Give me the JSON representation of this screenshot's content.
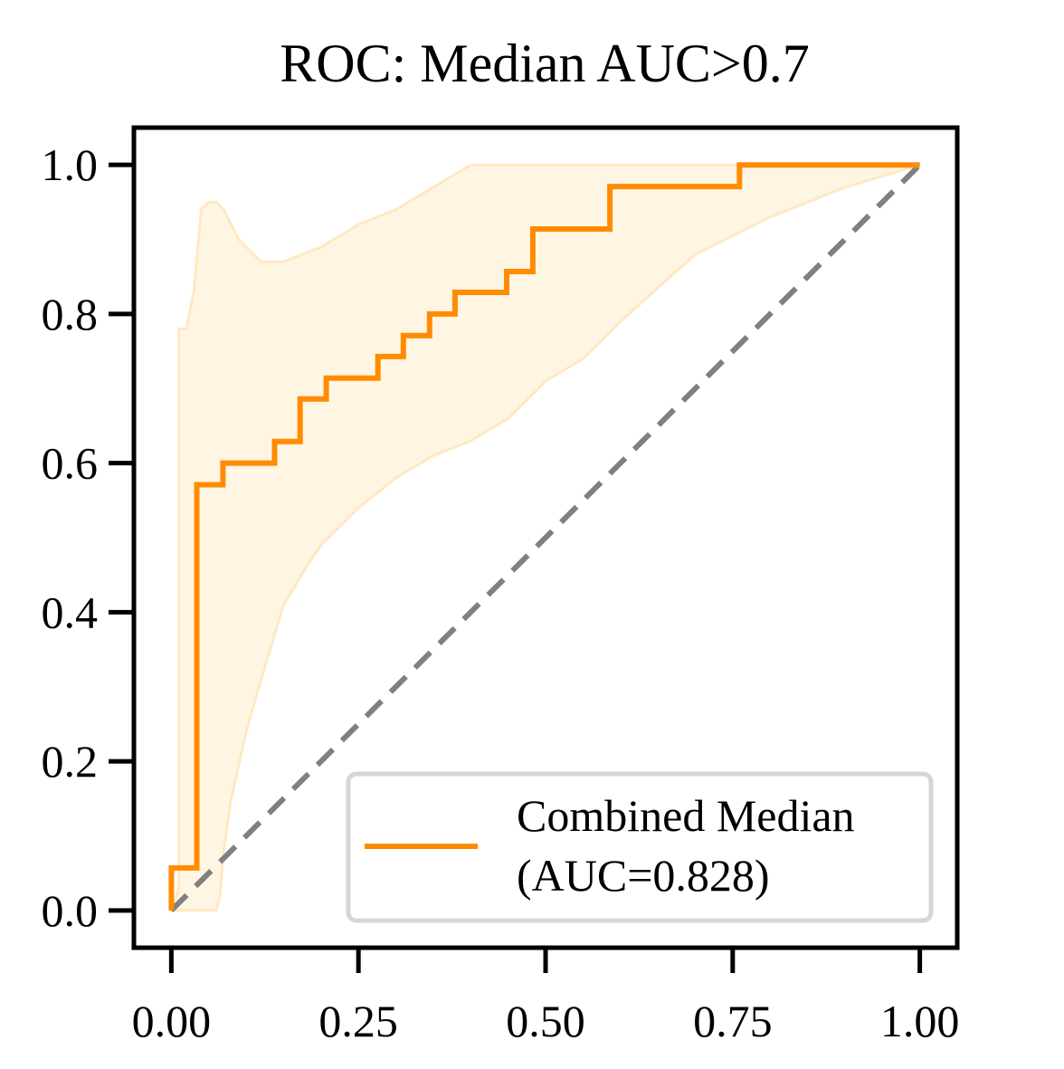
{
  "chart_data": {
    "type": "line",
    "title": "ROC: Median AUC>0.7",
    "xlabel": "",
    "ylabel": "",
    "xlim": [
      -0.05,
      1.05
    ],
    "ylim": [
      -0.05,
      1.05
    ],
    "x_ticks": [
      "0.00",
      "0.25",
      "0.50",
      "0.75",
      "1.00"
    ],
    "x_tick_values": [
      0,
      0.25,
      0.5,
      0.75,
      1.0
    ],
    "y_ticks": [
      "0.0",
      "0.2",
      "0.4",
      "0.6",
      "0.8",
      "1.0"
    ],
    "y_tick_values": [
      0,
      0.2,
      0.4,
      0.6,
      0.8,
      1.0
    ],
    "grid": false,
    "legend_position": "lower right",
    "series": [
      {
        "name": "Combined Median\n(AUC=0.828)",
        "legend_lines": [
          "Combined Median",
          "(AUC=0.828)"
        ],
        "color": "#ff8c00",
        "style": "step",
        "x": [
          0,
          0,
          0.034,
          0.034,
          0.069,
          0.069,
          0.138,
          0.138,
          0.172,
          0.172,
          0.207,
          0.207,
          0.276,
          0.276,
          0.31,
          0.31,
          0.345,
          0.345,
          0.379,
          0.379,
          0.448,
          0.448,
          0.483,
          0.483,
          0.586,
          0.586,
          0.759,
          0.759,
          1.0
        ],
        "y": [
          0,
          0.057,
          0.057,
          0.571,
          0.571,
          0.6,
          0.6,
          0.629,
          0.629,
          0.686,
          0.686,
          0.714,
          0.714,
          0.743,
          0.743,
          0.771,
          0.771,
          0.8,
          0.8,
          0.829,
          0.829,
          0.857,
          0.857,
          0.914,
          0.914,
          0.971,
          0.971,
          1.0,
          1.0
        ]
      }
    ],
    "confidence_band": {
      "color": "#ffe9c2",
      "opacity": 0.45,
      "upper": {
        "x": [
          0,
          0.01,
          0.01,
          0.02,
          0.03,
          0.04,
          0.05,
          0.06,
          0.07,
          0.08,
          0.09,
          0.1,
          0.12,
          0.15,
          0.2,
          0.25,
          0.3,
          0.35,
          0.4,
          0.45,
          0.5,
          0.6,
          0.7,
          0.8,
          0.9,
          1.0
        ],
        "y": [
          0,
          0.03,
          0.78,
          0.78,
          0.83,
          0.94,
          0.95,
          0.95,
          0.94,
          0.92,
          0.9,
          0.89,
          0.87,
          0.87,
          0.89,
          0.92,
          0.94,
          0.97,
          1.0,
          1.0,
          1.0,
          1.0,
          1.0,
          1.0,
          1.0,
          1.0
        ]
      },
      "lower": {
        "x": [
          0,
          0.05,
          0.06,
          0.065,
          0.07,
          0.08,
          0.1,
          0.12,
          0.15,
          0.18,
          0.2,
          0.25,
          0.3,
          0.35,
          0.4,
          0.45,
          0.5,
          0.55,
          0.6,
          0.7,
          0.8,
          0.9,
          1.0
        ],
        "y": [
          0,
          0,
          0,
          0.02,
          0.08,
          0.15,
          0.24,
          0.31,
          0.41,
          0.46,
          0.49,
          0.54,
          0.58,
          0.61,
          0.63,
          0.66,
          0.71,
          0.74,
          0.79,
          0.88,
          0.93,
          0.97,
          1.0
        ]
      }
    },
    "reference_line": {
      "x": [
        0,
        1
      ],
      "y": [
        0,
        1
      ],
      "color": "#808080",
      "style": "dashed"
    }
  }
}
